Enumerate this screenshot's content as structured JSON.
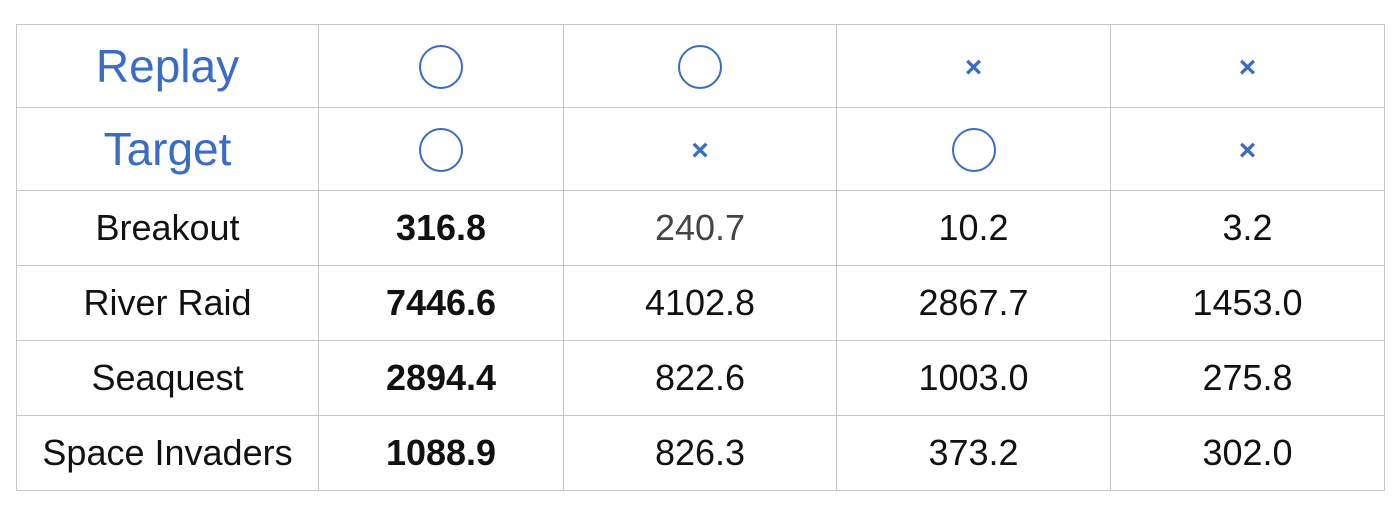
{
  "table": {
    "header_rows": [
      {
        "label": "Replay",
        "marks": [
          {
            "icon": "circle-mark-icon",
            "symbol": ""
          },
          {
            "icon": "circle-mark-icon",
            "symbol": ""
          },
          {
            "icon": "cross-mark-icon",
            "symbol": "×"
          },
          {
            "icon": "cross-mark-icon",
            "symbol": "×"
          }
        ]
      },
      {
        "label": "Target",
        "marks": [
          {
            "icon": "circle-mark-icon",
            "symbol": ""
          },
          {
            "icon": "cross-mark-icon",
            "symbol": "×"
          },
          {
            "icon": "circle-mark-icon",
            "symbol": ""
          },
          {
            "icon": "cross-mark-icon",
            "symbol": "×"
          }
        ]
      }
    ],
    "rows": [
      {
        "game": "Breakout",
        "values": [
          "316.8",
          "240.7",
          "10.2",
          "3.2"
        ]
      },
      {
        "game": "River Raid",
        "values": [
          "7446.6",
          "4102.8",
          "2867.7",
          "1453.0"
        ]
      },
      {
        "game": "Seaquest",
        "values": [
          "2894.4",
          "822.6",
          "1003.0",
          "275.8"
        ]
      },
      {
        "game": "Space Invaders",
        "values": [
          "1088.9",
          "826.3",
          "373.2",
          "302.0"
        ]
      }
    ],
    "colors": {
      "header_text": "#3a6cc4",
      "border": "#c7c7c7",
      "cell_text": "#111111"
    }
  }
}
